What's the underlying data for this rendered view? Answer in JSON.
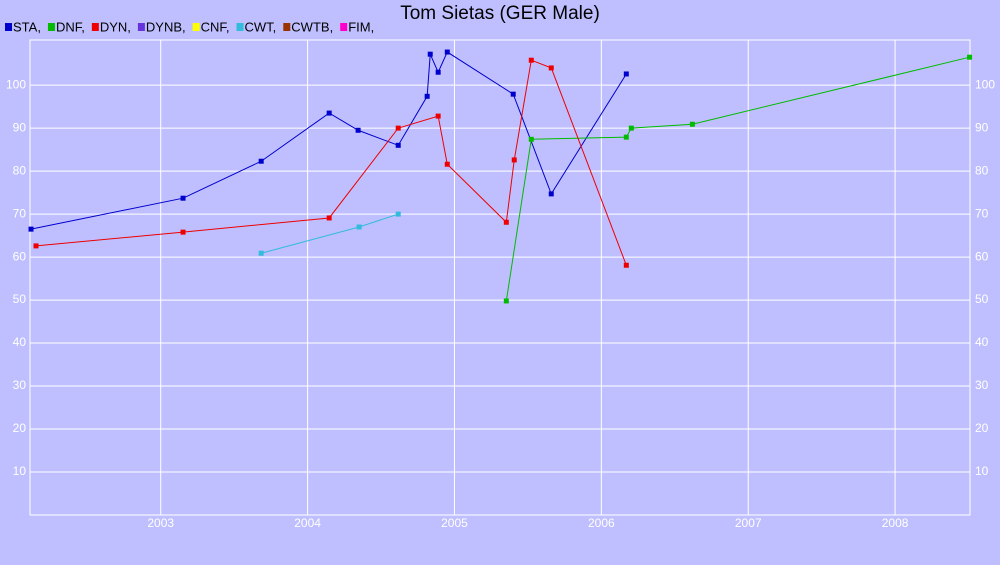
{
  "chart_data": {
    "type": "line",
    "title": "Tom Sietas (GER Male)",
    "xlim": [
      2002.11,
      2008.51
    ],
    "xticks": [
      2003,
      2004,
      2005,
      2006,
      2007,
      2008
    ],
    "ylim": [
      0,
      110.5
    ],
    "yticks": [
      10,
      20,
      30,
      40,
      50,
      60,
      70,
      80,
      90,
      100
    ],
    "grid": true,
    "series": [
      {
        "name": "STA,",
        "color": "#0000cc",
        "x": [
          2002.117,
          2003.152,
          2003.684,
          2004.147,
          2004.344,
          2004.617,
          2004.814,
          2004.835,
          2004.889,
          2004.951,
          2005.4,
          2005.659,
          2006.17
        ],
        "values": [
          66.5,
          73.7,
          82.3,
          93.5,
          89.5,
          86.0,
          97.4,
          107.2,
          103.0,
          107.7,
          97.9,
          74.7,
          102.6
        ]
      },
      {
        "name": "DNF,",
        "color": "#00bb00",
        "x": [
          2005.353,
          2005.523,
          2006.17,
          2006.204,
          2006.62,
          2008.507
        ],
        "values": [
          49.8,
          87.4,
          87.9,
          90.0,
          90.9,
          106.5
        ]
      },
      {
        "name": "DYN,",
        "color": "#ee0000",
        "x": [
          2002.151,
          2003.152,
          2004.147,
          2004.617,
          2004.889,
          2004.951,
          2005.353,
          2005.407,
          2005.523,
          2005.659,
          2006.17
        ],
        "values": [
          62.6,
          65.8,
          69.1,
          90.0,
          92.8,
          81.6,
          68.1,
          82.6,
          105.8,
          104.0,
          58.1
        ]
      },
      {
        "name": "DYNB,",
        "color": "#6633dd",
        "x": [],
        "values": []
      },
      {
        "name": "CNF,",
        "color": "#ffff00",
        "x": [],
        "values": []
      },
      {
        "name": "CWT,",
        "color": "#33bbdd",
        "x": [
          2003.684,
          2004.351,
          2004.617
        ],
        "values": [
          60.9,
          67.0,
          70.0
        ]
      },
      {
        "name": "CWTB,",
        "color": "#993300",
        "x": [],
        "values": []
      },
      {
        "name": "FIM,",
        "color": "#ff00cc",
        "x": [],
        "values": []
      }
    ]
  }
}
